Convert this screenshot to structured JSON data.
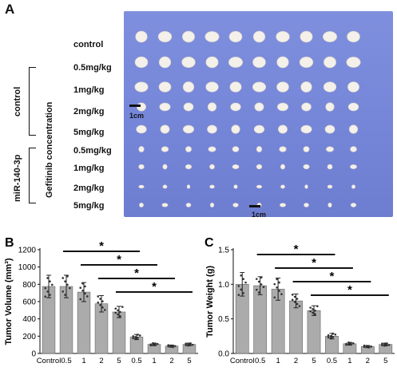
{
  "panel_a": {
    "letter": "A",
    "rows": [
      "control",
      "0.5mg/kg",
      "1mg/kg",
      "2mg/kg",
      "5mg/kg",
      "0.5mg/kg",
      "1mg/kg",
      "2mg/kg",
      "5mg/kg"
    ],
    "group_labels": [
      "control",
      "miR-140-3p"
    ],
    "treatment_label": "Gefitinib concentration",
    "scale_label_left": "1cm",
    "scale_label_bottom": "1cm",
    "colors": {
      "background": "#7a8adb",
      "tumor": "#f4f0ea"
    }
  },
  "chart_data": [
    {
      "type": "bar",
      "panel": "B",
      "categories": [
        "Control",
        "0.5",
        "1",
        "2",
        "5",
        "0.5",
        "1",
        "2",
        "5"
      ],
      "values": [
        775,
        775,
        710,
        575,
        480,
        190,
        105,
        85,
        105
      ],
      "errors": [
        130,
        130,
        110,
        95,
        65,
        30,
        15,
        12,
        15
      ],
      "ylabel": "Tumor Volume (mm³)",
      "ylim": [
        0,
        1200
      ],
      "yticks": [
        0,
        200,
        400,
        600,
        800,
        1000,
        1200
      ],
      "significance": [
        "*",
        "*",
        "*",
        "*"
      ],
      "colors": {
        "bar": "#ababab",
        "points": "#333333"
      }
    },
    {
      "type": "bar",
      "panel": "C",
      "categories": [
        "Control",
        "0.5",
        "1",
        "2",
        "5",
        "0.5",
        "1",
        "2",
        "5"
      ],
      "values": [
        1.0,
        0.98,
        0.93,
        0.76,
        0.62,
        0.25,
        0.14,
        0.1,
        0.13
      ],
      "errors": [
        0.17,
        0.13,
        0.16,
        0.1,
        0.07,
        0.04,
        0.02,
        0.015,
        0.02
      ],
      "ylabel": "Tumor Weight (g)",
      "ylim": [
        0,
        1.5
      ],
      "yticks": [
        "0.0",
        "0.5",
        "1.0",
        "1.5"
      ],
      "significance": [
        "*",
        "*",
        "*",
        "*"
      ],
      "colors": {
        "bar": "#ababab",
        "points": "#333333"
      }
    }
  ]
}
